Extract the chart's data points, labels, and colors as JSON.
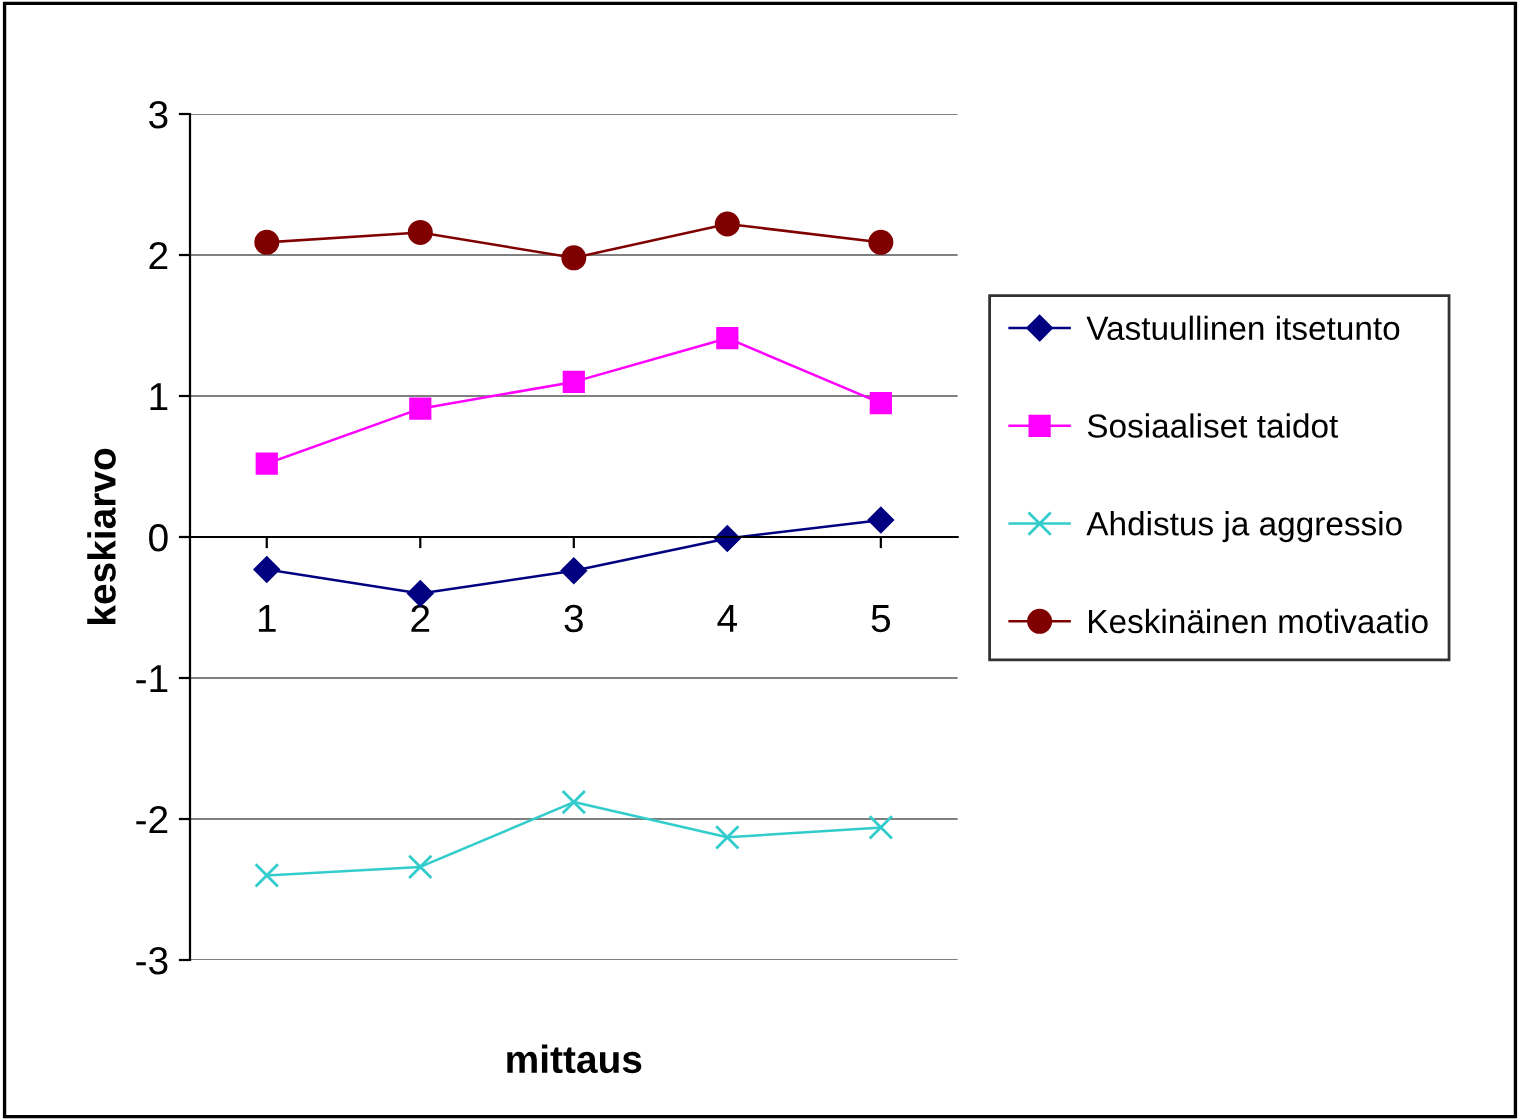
{
  "chart_data": {
    "type": "line",
    "xlabel": "mittaus",
    "ylabel": "keskiarvo",
    "categories": [
      "1",
      "2",
      "3",
      "4",
      "5"
    ],
    "series": [
      {
        "name": "Vastuullinen itsetunto",
        "color": "#000080",
        "marker": "diamond",
        "values": [
          -0.23,
          -0.4,
          -0.24,
          -0.01,
          0.12
        ]
      },
      {
        "name": "Sosiaaliset taidot",
        "color": "#ff00ff",
        "marker": "square",
        "values": [
          0.52,
          0.91,
          1.1,
          1.41,
          0.95
        ]
      },
      {
        "name": "Ahdistus ja aggressio",
        "color": "#33cccc",
        "marker": "cross",
        "values": [
          -2.4,
          -2.34,
          -1.88,
          -2.13,
          -2.06
        ]
      },
      {
        "name": "Keskinäinen motivaatio",
        "color": "#800000",
        "marker": "circle",
        "values": [
          2.09,
          2.16,
          1.98,
          2.22,
          2.09
        ]
      }
    ],
    "ylim": [
      -3,
      3
    ],
    "yticks": [
      -3,
      -2,
      -1,
      0,
      1,
      2,
      3
    ],
    "grid": "y",
    "legend": "right",
    "line_style": "solid"
  }
}
